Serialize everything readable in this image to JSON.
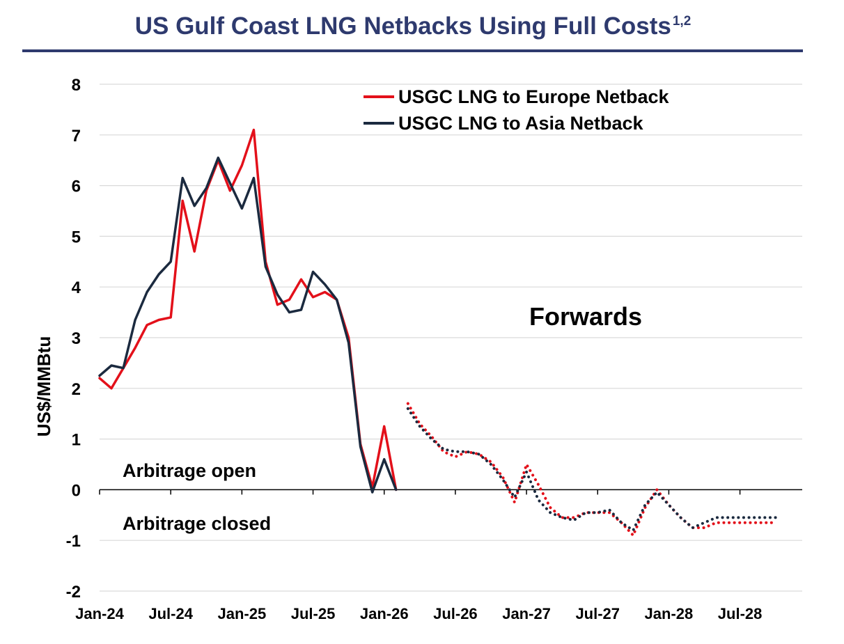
{
  "title": "US Gulf Coast LNG Netbacks Using Full Costs",
  "title_superscript": "1,2",
  "chart_data": {
    "type": "line",
    "ylabel": "US$/MMBtu",
    "xlabel": "",
    "ylim": [
      -2,
      8
    ],
    "yticks": [
      "8",
      "7",
      "6",
      "5",
      "4",
      "3",
      "2",
      "1",
      "0",
      "-1",
      "-2"
    ],
    "ytick_values": [
      8,
      7,
      6,
      5,
      4,
      3,
      2,
      1,
      0,
      -1,
      -2
    ],
    "xtick_labels": [
      "Jan-24",
      "Jul-24",
      "Jan-25",
      "Jul-25",
      "Jan-26",
      "Jul-26",
      "Jan-27",
      "Jul-27",
      "Jan-28",
      "Jul-28"
    ],
    "xtick_months": [
      0,
      6,
      12,
      18,
      24,
      30,
      36,
      42,
      48,
      54
    ],
    "grid": true,
    "legend_position": "top-right",
    "annotations": {
      "open": "Arbitrage open",
      "closed": "Arbitrage closed",
      "forwards": "Forwards"
    },
    "series": [
      {
        "name": "USGC LNG to Europe Netback",
        "color": "#e3101a",
        "actual": {
          "x": [
            0,
            1,
            2,
            3,
            4,
            5,
            6,
            7,
            8,
            9,
            10,
            11,
            12,
            13,
            14,
            15,
            16,
            17,
            18,
            19,
            20,
            21,
            22,
            23,
            24,
            25
          ],
          "values": [
            2.2,
            2.0,
            2.4,
            2.8,
            3.25,
            3.35,
            3.4,
            5.7,
            4.7,
            5.9,
            6.5,
            5.9,
            6.4,
            7.1,
            4.5,
            3.65,
            3.75,
            4.15,
            3.8,
            3.9,
            3.75,
            3.0,
            0.9,
            0.05,
            1.25,
            0.0
          ]
        },
        "forward": {
          "x": [
            26,
            27,
            28,
            29,
            30,
            31,
            32,
            33,
            34,
            35,
            36,
            37,
            38,
            39,
            40,
            41,
            42,
            43,
            44,
            45,
            46,
            47,
            48,
            49,
            50,
            51,
            52,
            53,
            54,
            55,
            56,
            57
          ],
          "values": [
            1.7,
            1.3,
            1.05,
            0.75,
            0.65,
            0.75,
            0.7,
            0.55,
            0.25,
            -0.25,
            0.5,
            0.1,
            -0.35,
            -0.55,
            -0.55,
            -0.45,
            -0.45,
            -0.45,
            -0.65,
            -0.9,
            -0.35,
            0.0,
            -0.3,
            -0.55,
            -0.75,
            -0.75,
            -0.65,
            -0.65,
            -0.65,
            -0.65,
            -0.65,
            -0.65
          ]
        }
      },
      {
        "name": "USGC LNG to Asia Netback",
        "color": "#1b2a3f",
        "actual": {
          "x": [
            0,
            1,
            2,
            3,
            4,
            5,
            6,
            7,
            8,
            9,
            10,
            11,
            12,
            13,
            14,
            15,
            16,
            17,
            18,
            19,
            20,
            21,
            22,
            23,
            24,
            25
          ],
          "values": [
            2.25,
            2.45,
            2.4,
            3.35,
            3.9,
            4.25,
            4.5,
            6.15,
            5.6,
            5.95,
            6.55,
            6.05,
            5.55,
            6.15,
            4.4,
            3.85,
            3.5,
            3.55,
            4.3,
            4.05,
            3.75,
            2.9,
            0.85,
            -0.05,
            0.6,
            0.0
          ]
        },
        "forward": {
          "x": [
            26,
            27,
            28,
            29,
            30,
            31,
            32,
            33,
            34,
            35,
            36,
            37,
            38,
            39,
            40,
            41,
            42,
            43,
            44,
            45,
            46,
            47,
            48,
            49,
            50,
            51,
            52,
            53,
            54,
            55,
            56,
            57
          ],
          "values": [
            1.6,
            1.25,
            1.0,
            0.8,
            0.75,
            0.75,
            0.7,
            0.5,
            0.2,
            -0.15,
            0.35,
            -0.2,
            -0.45,
            -0.55,
            -0.6,
            -0.45,
            -0.45,
            -0.4,
            -0.65,
            -0.8,
            -0.3,
            -0.05,
            -0.3,
            -0.55,
            -0.75,
            -0.65,
            -0.55,
            -0.55,
            -0.55,
            -0.55,
            -0.55,
            -0.55
          ]
        }
      }
    ]
  }
}
